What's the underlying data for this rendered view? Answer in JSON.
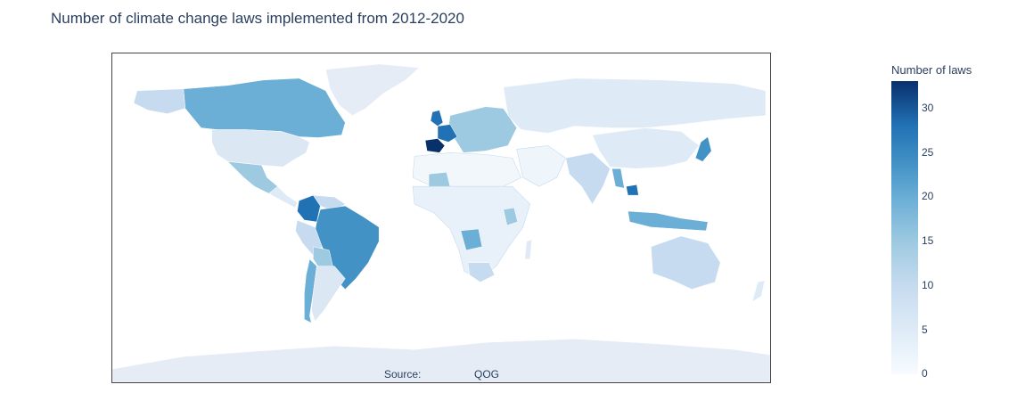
{
  "title": "Number of climate change laws implemented from 2012-2020",
  "source": {
    "label": "Source:",
    "value": "QOG"
  },
  "legend": {
    "title": "Number of laws",
    "ticks": [
      "30",
      "25",
      "20",
      "15",
      "10",
      "5",
      "0"
    ],
    "min": 0,
    "max": 33,
    "colors": {
      "low": "#f7fbff",
      "mid": "#6baed6",
      "high": "#08306b",
      "no_data": "#e5ecf6",
      "border": "#444444"
    }
  },
  "map_data": {
    "regions": [
      {
        "name": "Canada",
        "value": 15
      },
      {
        "name": "United States",
        "value": 8
      },
      {
        "name": "Mexico",
        "value": 14
      },
      {
        "name": "Colombia",
        "value": 26
      },
      {
        "name": "Venezuela",
        "value": 10
      },
      {
        "name": "Brazil",
        "value": 20
      },
      {
        "name": "Peru",
        "value": 10
      },
      {
        "name": "Bolivia",
        "value": 12
      },
      {
        "name": "Chile",
        "value": 14
      },
      {
        "name": "Argentina",
        "value": 8
      },
      {
        "name": "Greenland",
        "value": null
      },
      {
        "name": "Spain",
        "value": 33
      },
      {
        "name": "France",
        "value": 25
      },
      {
        "name": "United Kingdom",
        "value": 20
      },
      {
        "name": "Europe (other)",
        "value": 12
      },
      {
        "name": "Russia",
        "value": 6
      },
      {
        "name": "Africa (north)",
        "value": 2
      },
      {
        "name": "Mali",
        "value": 15
      },
      {
        "name": "Kenya",
        "value": 14
      },
      {
        "name": "Angola",
        "value": 17
      },
      {
        "name": "South Africa",
        "value": 10
      },
      {
        "name": "China",
        "value": 6
      },
      {
        "name": "India",
        "value": 10
      },
      {
        "name": "Myanmar",
        "value": 16
      },
      {
        "name": "Cambodia",
        "value": 22
      },
      {
        "name": "Indonesia",
        "value": 16
      },
      {
        "name": "Japan",
        "value": 20
      },
      {
        "name": "Australia",
        "value": 9
      },
      {
        "name": "Antarctica",
        "value": null
      }
    ]
  }
}
